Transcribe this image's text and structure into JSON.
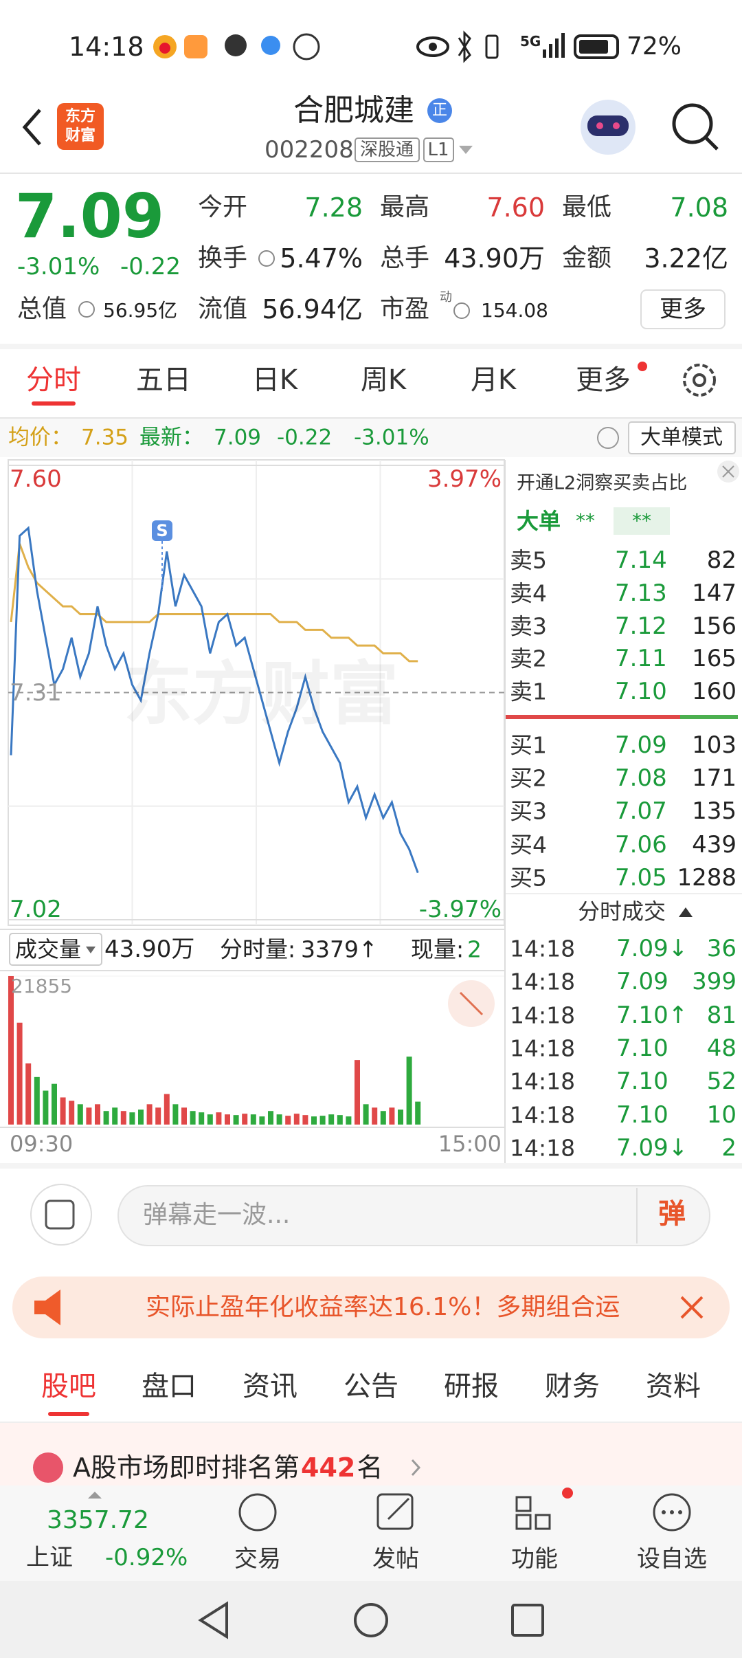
{
  "status_bar": {
    "time": "14:18",
    "network": "5G",
    "battery": "72%"
  },
  "header": {
    "logo": "东方财富",
    "title": "合肥城建",
    "badge": "正",
    "code": "002208",
    "tags": [
      "深股通",
      "L1"
    ]
  },
  "quote": {
    "price": "7.09",
    "change_pct": "-3.01%",
    "change": "-0.22",
    "fields": [
      {
        "label": "今开",
        "value": "7.28",
        "color": "#1a9a3a"
      },
      {
        "label": "最高",
        "value": "7.60",
        "color": "#d93a3a"
      },
      {
        "label": "最低",
        "value": "7.08",
        "color": "#1a9a3a"
      },
      {
        "label": "换手",
        "value": "5.47%"
      },
      {
        "label": "总手",
        "value": "43.90万"
      },
      {
        "label": "金额",
        "value": "3.22亿"
      },
      {
        "label": "总值",
        "value": "56.95亿"
      },
      {
        "label": "流值",
        "value": "56.94亿"
      },
      {
        "label": "市盈",
        "value": "154.08",
        "note": "动"
      }
    ],
    "more": "更多"
  },
  "tabs": {
    "items": [
      "分时",
      "五日",
      "日K",
      "周K",
      "月K",
      "更多"
    ],
    "active": 0
  },
  "info": {
    "avg_label": "均价：",
    "avg": "7.35",
    "last_label": "最新：",
    "last": "7.09",
    "change": "-0.22",
    "change_pct": "-3.01%",
    "mode_button": "大单模式"
  },
  "intraday": {
    "watermark": "东方财富",
    "marker": "S",
    "ylim": [
      7.02,
      7.6
    ],
    "yticks": [
      {
        "value": 7.6,
        "label": "7.60"
      },
      {
        "value": 7.31,
        "label": "7.31"
      },
      {
        "value": 7.02,
        "label": "7.02"
      }
    ],
    "pct_labels": [
      "3.97%",
      "-3.97%"
    ],
    "price": [
      7.23,
      7.51,
      7.52,
      7.44,
      7.38,
      7.32,
      7.34,
      7.38,
      7.33,
      7.36,
      7.42,
      7.37,
      7.34,
      7.36,
      7.32,
      7.3,
      7.36,
      7.41,
      7.49,
      7.42,
      7.46,
      7.44,
      7.42,
      7.36,
      7.4,
      7.41,
      7.37,
      7.38,
      7.34,
      7.3,
      7.26,
      7.22,
      7.26,
      7.29,
      7.33,
      7.29,
      7.26,
      7.24,
      7.22,
      7.17,
      7.19,
      7.15,
      7.18,
      7.15,
      7.17,
      7.13,
      7.11,
      7.08
    ],
    "avg": [
      7.4,
      7.5,
      7.47,
      7.45,
      7.44,
      7.43,
      7.42,
      7.42,
      7.41,
      7.41,
      7.41,
      7.4,
      7.4,
      7.4,
      7.4,
      7.4,
      7.4,
      7.41,
      7.41,
      7.41,
      7.41,
      7.41,
      7.41,
      7.41,
      7.41,
      7.41,
      7.41,
      7.41,
      7.41,
      7.41,
      7.41,
      7.4,
      7.4,
      7.4,
      7.39,
      7.39,
      7.39,
      7.38,
      7.38,
      7.38,
      7.37,
      7.37,
      7.37,
      7.36,
      7.36,
      7.36,
      7.35,
      7.35
    ],
    "price_color": "#3a78c2",
    "avg_color": "#e0b04a",
    "x_labels": [
      "09:30",
      "15:00"
    ]
  },
  "volume": {
    "selector": "成交量",
    "total": "43.90万",
    "minute_label": "分时量:",
    "minute": "3379↑",
    "current_label": "现量:",
    "current": "2",
    "ylim": [
      0,
      21855
    ],
    "yticks": [
      21855
    ],
    "values": [
      21855,
      15000,
      9000,
      7000,
      5000,
      6000,
      4000,
      3500,
      3000,
      2500,
      3000,
      2000,
      2500,
      2000,
      1800,
      2200,
      3000,
      2500,
      4500,
      3000,
      2500,
      2000,
      1800,
      1500,
      1800,
      1500,
      1400,
      1600,
      1500,
      1200,
      2000,
      1500,
      1300,
      1600,
      1400,
      1200,
      1300,
      1500,
      1400,
      1200,
      9500,
      3000,
      2500,
      2000,
      2500,
      2200,
      10000,
      3379
    ]
  },
  "order_book": {
    "promo": "开通L2洞察买卖占比",
    "big_label": "大单",
    "big_values": [
      "**",
      "**"
    ],
    "asks": [
      [
        "卖5",
        "7.14",
        "82"
      ],
      [
        "卖4",
        "7.13",
        "147"
      ],
      [
        "卖3",
        "7.12",
        "156"
      ],
      [
        "卖2",
        "7.11",
        "165"
      ],
      [
        "卖1",
        "7.10",
        "160"
      ]
    ],
    "bids": [
      [
        "买1",
        "7.09",
        "103"
      ],
      [
        "买2",
        "7.08",
        "171"
      ],
      [
        "买3",
        "7.07",
        "135"
      ],
      [
        "买4",
        "7.06",
        "439"
      ],
      [
        "买5",
        "7.05",
        "1288"
      ]
    ]
  },
  "trades": {
    "title": "分时成交",
    "rows": [
      [
        "14:18",
        "7.09↓",
        "36"
      ],
      [
        "14:18",
        "7.09",
        "399"
      ],
      [
        "14:18",
        "7.10↑",
        "81"
      ],
      [
        "14:18",
        "7.10",
        "48"
      ],
      [
        "14:18",
        "7.10",
        "52"
      ],
      [
        "14:18",
        "7.10",
        "10"
      ],
      [
        "14:18",
        "7.09↓",
        "2"
      ]
    ]
  },
  "comment": {
    "placeholder": "弹幕走一波...",
    "button": "弹"
  },
  "banner": {
    "text": "实际止盈年化收益率达16.1%！多期组合运"
  },
  "section_tabs": {
    "items": [
      "股吧",
      "盘口",
      "资讯",
      "公告",
      "研报",
      "财务",
      "资料"
    ],
    "active": 0
  },
  "ranking": {
    "prefix": "A股市场即时排名第",
    "rank": "442",
    "suffix": "名"
  },
  "bottom_nav": {
    "index_value": "3357.72",
    "index_name": "上证",
    "index_change": "-0.92%",
    "items": [
      "交易",
      "发帖",
      "功能",
      "设自选"
    ]
  }
}
